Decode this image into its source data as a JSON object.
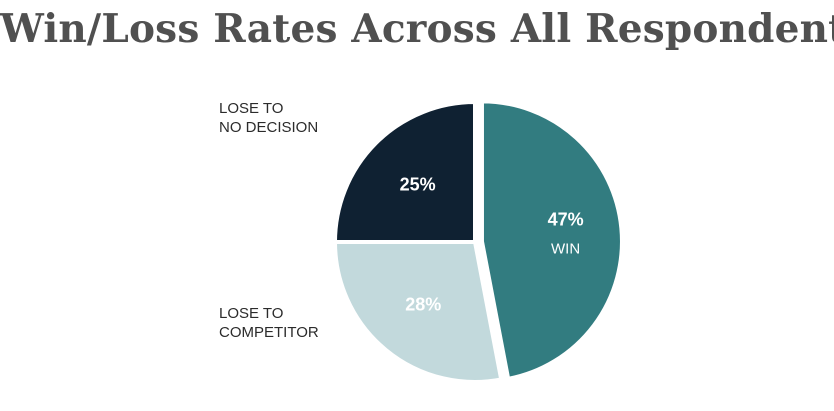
{
  "chart_data": {
    "type": "pie",
    "title": "Win/Loss Rates Across All Respondents",
    "slices": [
      {
        "label": "WIN",
        "value": 47,
        "value_label": "47%",
        "color": "#327c80",
        "label_placement": "inside"
      },
      {
        "label": "LOSE TO\nCOMPETITOR",
        "value": 28,
        "value_label": "28%",
        "color": "#c2d9dc",
        "label_placement": "outside-left"
      },
      {
        "label": "LOSE TO\nNO DECISION",
        "value": 25,
        "value_label": "25%",
        "color": "#0f2132",
        "label_placement": "outside-left"
      }
    ],
    "start": "12 o'clock",
    "direction": "clockwise",
    "exploded_slice": "WIN",
    "legend": "none",
    "grid": false
  }
}
